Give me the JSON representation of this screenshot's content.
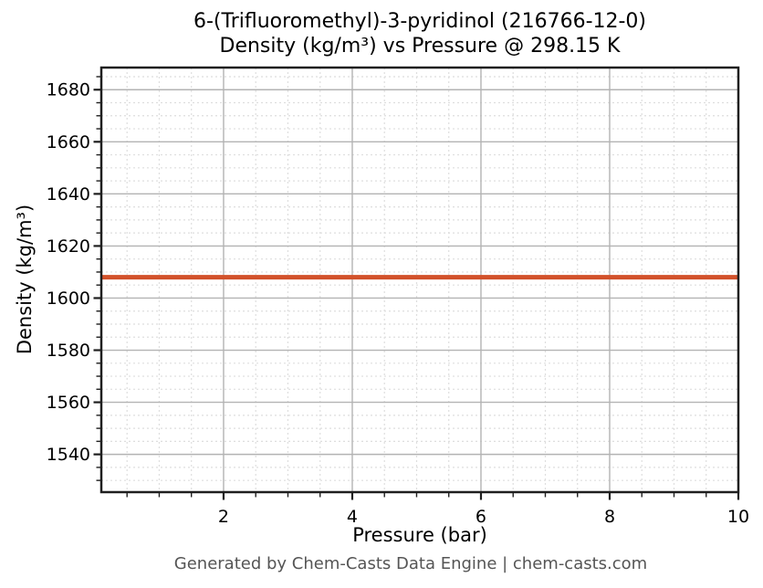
{
  "chart_data": {
    "type": "line",
    "title": "6-(Trifluoromethyl)-3-pyridinol (216766-12-0)",
    "subtitle": "Density (kg/m³) vs Pressure @ 298.15 K",
    "xlabel": "Pressure (bar)",
    "ylabel": "Density (kg/m³)",
    "xlim": [
      0.1,
      10
    ],
    "ylim": [
      1525.5,
      1688.5
    ],
    "x_major_ticks": [
      2,
      4,
      6,
      8,
      10
    ],
    "x_tick_labels": [
      "2",
      "4",
      "6",
      "8",
      "10"
    ],
    "x_minor_step": 0.5,
    "y_major_ticks": [
      1540,
      1560,
      1580,
      1600,
      1620,
      1640,
      1660,
      1680
    ],
    "y_tick_labels": [
      "1540",
      "1560",
      "1580",
      "1600",
      "1620",
      "1640",
      "1660",
      "1680"
    ],
    "y_minor_step": 5,
    "grid": true,
    "legend": "none",
    "series": [
      {
        "name": "Density",
        "x": [
          0.1,
          10
        ],
        "y": [
          1608,
          1608
        ],
        "color": "#d2512a",
        "line_width": 5
      }
    ],
    "footer_note": "Generated by Chem-Casts Data Engine | chem-casts.com"
  },
  "colors": {
    "background": "#ffffff",
    "line": "#d2512a",
    "grid_major": "#b3b3b3",
    "grid_minor": "#dedede",
    "spine": "#1f1f1f",
    "tick": "#1f1f1f",
    "tick_label": "#000000",
    "footer_text": "#555555"
  }
}
